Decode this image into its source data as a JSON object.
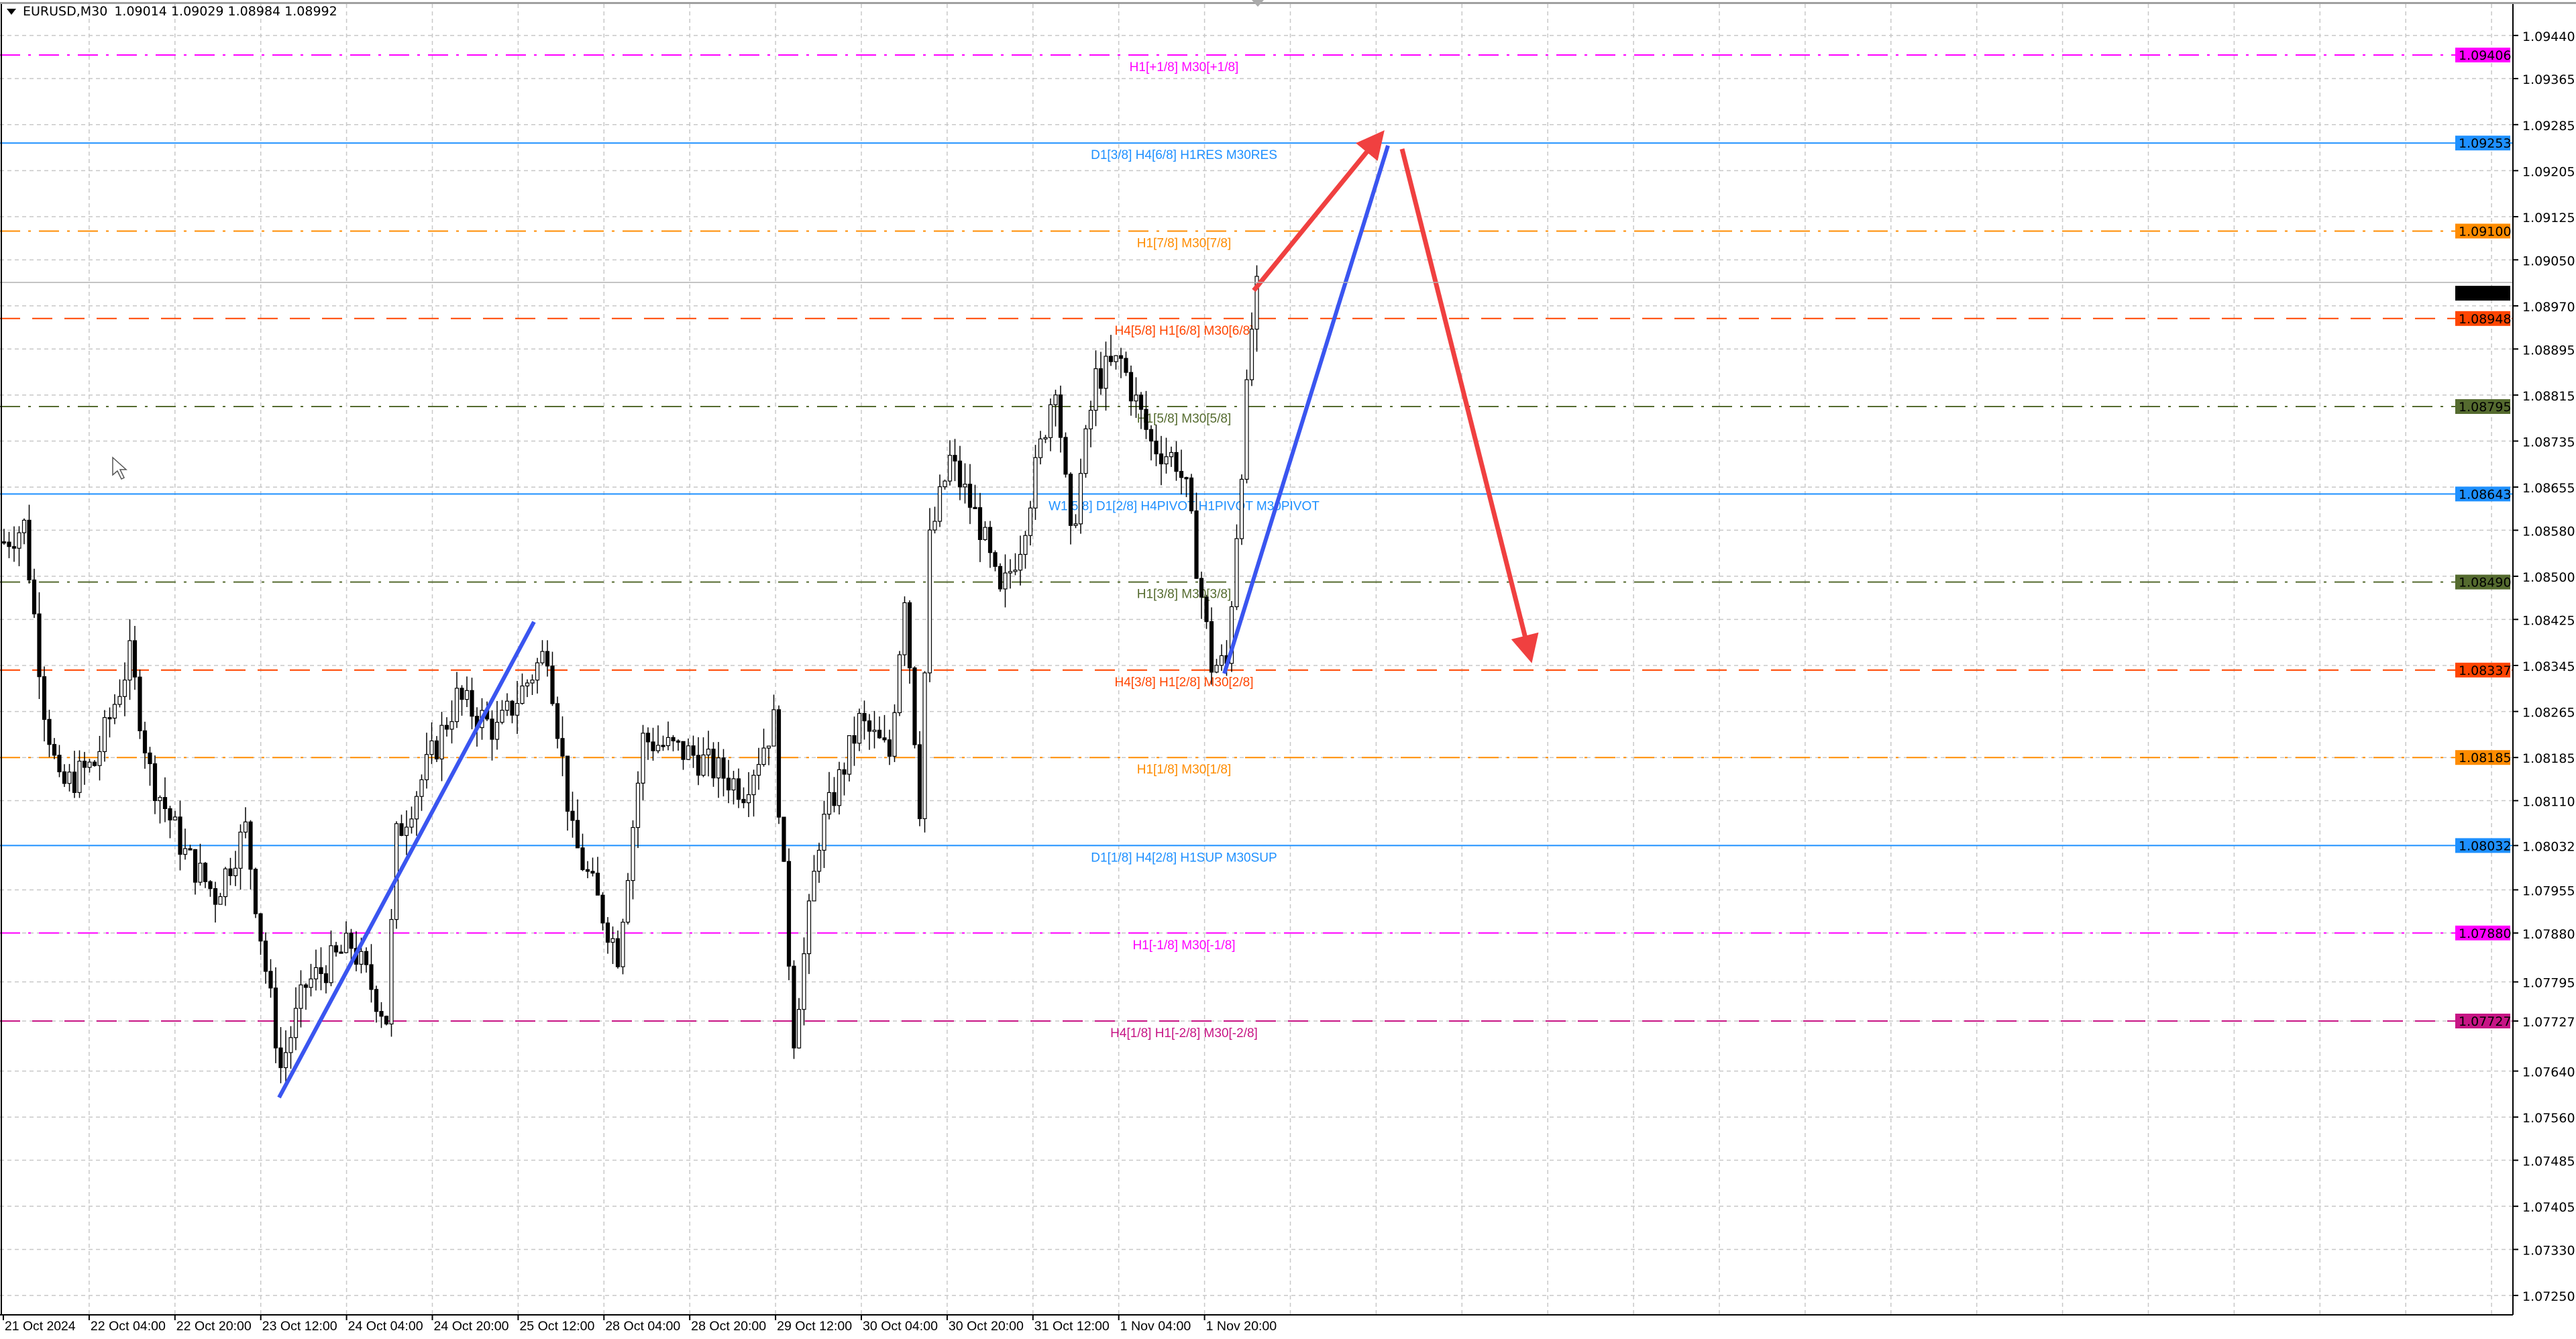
{
  "header": {
    "symbol": "EURUSD,M30",
    "ohlc": "1.09014 1.09029 1.08984 1.08992"
  },
  "current_price": {
    "value": "1.08992",
    "color": "#000000"
  },
  "price_axis": {
    "ticks": [
      "1.09440",
      "1.09365",
      "1.09285",
      "1.09205",
      "1.09125",
      "1.09050",
      "1.08970",
      "1.08895",
      "1.08815",
      "1.08735",
      "1.08655",
      "1.08580",
      "1.08500",
      "1.08425",
      "1.08345",
      "1.08265",
      "1.08185",
      "1.08110",
      "1.08032",
      "1.07955",
      "1.07880",
      "1.07795",
      "1.07727",
      "1.07640",
      "1.07560",
      "1.07485",
      "1.07405",
      "1.07330",
      "1.07250"
    ]
  },
  "time_axis": {
    "labels": [
      "21 Oct 2024",
      "22 Oct 04:00",
      "22 Oct 20:00",
      "23 Oct 12:00",
      "24 Oct 04:00",
      "24 Oct 20:00",
      "25 Oct 12:00",
      "28 Oct 04:00",
      "28 Oct 20:00",
      "29 Oct 12:00",
      "30 Oct 04:00",
      "30 Oct 20:00",
      "31 Oct 12:00",
      "1 Nov 04:00",
      "1 Nov 20:00"
    ]
  },
  "levels": [
    {
      "label": "H1[+1/8] M30[+1/8]",
      "price": "1.09406",
      "color": "#ff00ff",
      "style": "dashdot"
    },
    {
      "label": "D1[3/8] H4[6/8] H1RES M30RES",
      "price": "1.09253",
      "color": "#1e90ff",
      "style": "solid"
    },
    {
      "label": "H1[7/8] M30[7/8]",
      "price": "1.09100",
      "color": "#ff8c00",
      "style": "dashdot"
    },
    {
      "label": "H4[5/8] H1[6/8] M30[6/8]",
      "price": "1.08948",
      "color": "#ff4500",
      "style": "dash"
    },
    {
      "label": "H1[5/8] M30[5/8]",
      "price": "1.08795",
      "color": "#556b2f",
      "style": "dashdot"
    },
    {
      "label": "W1[5/8] D1[2/8] H4PIVOT H1PIVOT M30PIVOT",
      "price": "1.08643",
      "color": "#1e90ff",
      "style": "solid"
    },
    {
      "label": "H1[3/8] M30[3/8]",
      "price": "1.08490",
      "color": "#556b2f",
      "style": "dashdot"
    },
    {
      "label": "H4[3/8] H1[2/8] M30[2/8]",
      "price": "1.08337",
      "color": "#ff4500",
      "style": "dash"
    },
    {
      "label": "H1[1/8] M30[1/8]",
      "price": "1.08185",
      "color": "#ff8c00",
      "style": "dashdot"
    },
    {
      "label": "D1[1/8] H4[2/8] H1SUP M30SUP",
      "price": "1.08032",
      "color": "#1e90ff",
      "style": "solid"
    },
    {
      "label": "H1[-1/8] M30[-1/8]",
      "price": "1.07880",
      "color": "#ff00ff",
      "style": "dashdot"
    },
    {
      "label": "H4[1/8] H1[-2/8] M30[-2/8]",
      "price": "1.07727",
      "color": "#c71585",
      "style": "dash"
    }
  ],
  "price_path": [
    [
      0,
      1.0856
    ],
    [
      4,
      1.08588
    ],
    [
      8,
      1.08274
    ],
    [
      11,
      1.08131
    ],
    [
      18,
      1.08174
    ],
    [
      25,
      1.0836
    ],
    [
      29,
      1.0816
    ],
    [
      36,
      1.08017
    ],
    [
      42,
      1.07946
    ],
    [
      48,
      1.0806
    ],
    [
      52,
      1.07817
    ],
    [
      55,
      1.07646
    ],
    [
      60,
      1.07789
    ],
    [
      69,
      1.0786
    ],
    [
      76,
      1.07732
    ],
    [
      78,
      1.08046
    ],
    [
      90,
      1.08288
    ],
    [
      98,
      1.08231
    ],
    [
      108,
      1.08374
    ],
    [
      113,
      1.08046
    ],
    [
      122,
      1.07846
    ],
    [
      127,
      1.08217
    ],
    [
      137,
      1.08189
    ],
    [
      147,
      1.08131
    ],
    [
      153,
      1.08246
    ],
    [
      157,
      1.07703
    ],
    [
      162,
      1.08046
    ],
    [
      170,
      1.08246
    ],
    [
      176,
      1.08189
    ],
    [
      179,
      1.08474
    ],
    [
      182,
      1.08103
    ],
    [
      184,
      1.0856
    ],
    [
      188,
      1.08702
    ],
    [
      194,
      1.08588
    ],
    [
      198,
      1.0846
    ],
    [
      202,
      1.0856
    ],
    [
      209,
      1.08845
    ],
    [
      212,
      1.0856
    ],
    [
      217,
      1.08845
    ],
    [
      222,
      1.08874
    ],
    [
      228,
      1.08731
    ],
    [
      233,
      1.08702
    ],
    [
      235,
      1.08645
    ],
    [
      240,
      1.08346
    ],
    [
      243,
      1.08346
    ],
    [
      248,
      1.08931
    ],
    [
      249,
      1.08992
    ]
  ],
  "drawings": {
    "up_color": "#3a55f0",
    "forecast_color": "#f04040"
  }
}
